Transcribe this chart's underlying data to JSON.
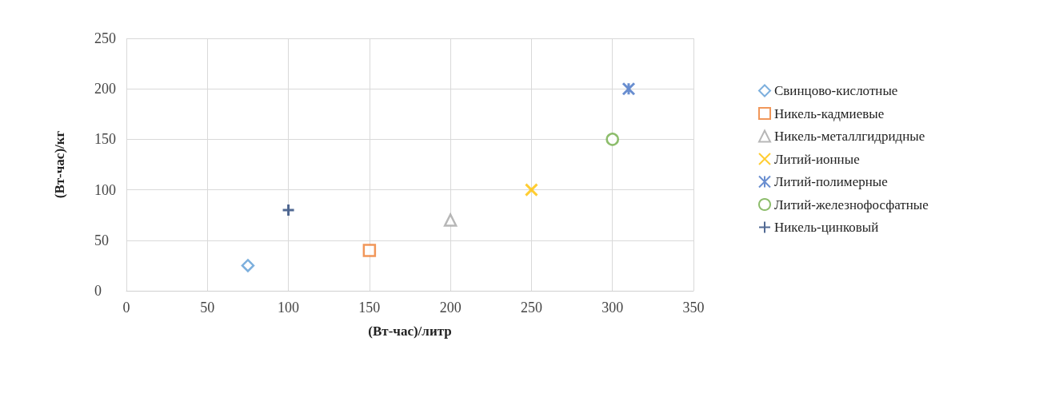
{
  "chart_data": {
    "type": "scatter",
    "xlabel": "(Вт-час)/литр",
    "ylabel": "(Вт-час)/кг",
    "xlim": [
      0,
      350
    ],
    "xticks": [
      0,
      50,
      100,
      150,
      200,
      250,
      300,
      350
    ],
    "ylim": [
      0,
      250
    ],
    "yticks": [
      0,
      50,
      100,
      150,
      200,
      250
    ],
    "grid": true,
    "legend": "right",
    "series": [
      {
        "name": "Свинцово-кислотные",
        "color": "#5b9bd5",
        "marker": "diamond",
        "x": [
          75
        ],
        "values": [
          25
        ]
      },
      {
        "name": "Никель-кадмиевые",
        "color": "#ed7d31",
        "marker": "square",
        "x": [
          150
        ],
        "values": [
          40
        ]
      },
      {
        "name": "Никель-металлгидридные",
        "color": "#a5a5a5",
        "marker": "triangle",
        "x": [
          200
        ],
        "values": [
          70
        ]
      },
      {
        "name": "Литий-ионные",
        "color": "#ffc000",
        "marker": "x",
        "x": [
          250
        ],
        "values": [
          100
        ]
      },
      {
        "name": "Литий-полимерные",
        "color": "#4472c4",
        "x": [
          310
        ],
        "values": [
          200
        ]
      },
      {
        "name": "Литий-железнофосфатные",
        "color": "#70ad47",
        "marker": "circle",
        "x": [
          300
        ],
        "values": [
          150
        ]
      },
      {
        "name": "Никель-цинковый",
        "color": "#264478",
        "marker": "cross",
        "x": [
          100
        ],
        "values": [
          80
        ]
      }
    ]
  }
}
